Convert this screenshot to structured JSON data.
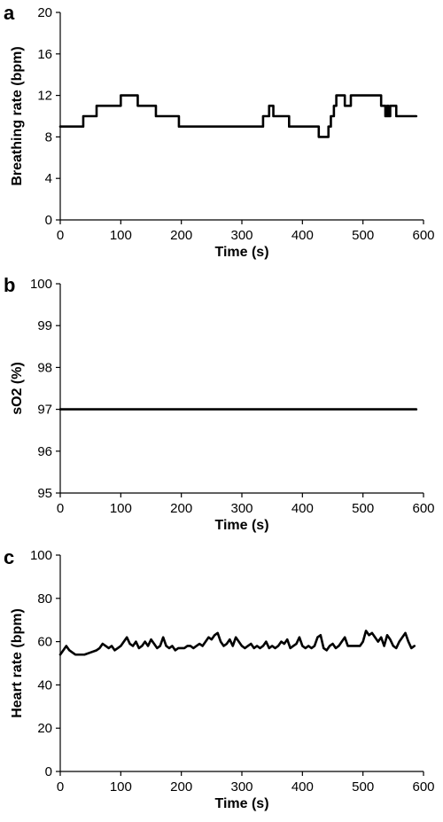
{
  "chart_data": [
    {
      "panel": "a",
      "type": "line",
      "xlabel": "Time (s)",
      "ylabel": "Breathing rate (bpm)",
      "xlim": [
        0,
        600
      ],
      "ylim": [
        0,
        20
      ],
      "xticks": [
        "0",
        "100",
        "200",
        "300",
        "400",
        "500",
        "600"
      ],
      "yticks": [
        "0",
        "4",
        "8",
        "12",
        "16",
        "20"
      ],
      "grid": false,
      "line_color": "#000000",
      "series": [
        {
          "x": [
            0,
            38,
            38,
            60,
            60,
            100,
            100,
            128,
            128,
            158,
            158,
            196,
            196,
            335,
            335,
            345,
            345,
            348,
            348,
            352,
            352,
            355,
            355,
            378,
            378,
            427,
            427,
            443,
            443,
            447,
            447,
            452,
            452,
            456,
            456,
            462,
            462,
            470,
            470,
            480,
            480,
            490,
            490,
            530,
            530,
            537,
            537,
            540,
            540,
            542,
            542,
            545,
            545,
            555,
            555,
            588
          ],
          "y": [
            9,
            9,
            10,
            10,
            11,
            11,
            12,
            12,
            11,
            11,
            10,
            10,
            9,
            9,
            10,
            10,
            11,
            11,
            11,
            11,
            10,
            10,
            10,
            10,
            9,
            9,
            8,
            8,
            9,
            9,
            10,
            10,
            11,
            11,
            12,
            12,
            12,
            12,
            11,
            11,
            12,
            12,
            12,
            12,
            11,
            11,
            10,
            10,
            11,
            11,
            10,
            10,
            11,
            11,
            10,
            10
          ]
        }
      ]
    },
    {
      "panel": "b",
      "type": "line",
      "xlabel": "Time (s)",
      "ylabel": "sO2 (%)",
      "xlim": [
        0,
        600
      ],
      "ylim": [
        95,
        100
      ],
      "xticks": [
        "0",
        "100",
        "200",
        "300",
        "400",
        "500",
        "600"
      ],
      "yticks": [
        "95",
        "96",
        "97",
        "98",
        "99",
        "100"
      ],
      "grid": false,
      "line_color": "#000000",
      "series": [
        {
          "x": [
            0,
            588
          ],
          "y": [
            97,
            97
          ]
        }
      ]
    },
    {
      "panel": "c",
      "type": "line",
      "xlabel": "Time (s)",
      "ylabel": "Heart rate (bpm)",
      "xlim": [
        0,
        600
      ],
      "ylim": [
        0,
        100
      ],
      "xticks": [
        "0",
        "100",
        "200",
        "300",
        "400",
        "500",
        "600"
      ],
      "yticks": [
        "0",
        "20",
        "40",
        "60",
        "80",
        "100"
      ],
      "grid": false,
      "line_color": "#000000",
      "series": [
        {
          "x": [
            0,
            5,
            10,
            15,
            20,
            25,
            30,
            40,
            50,
            60,
            65,
            70,
            75,
            80,
            85,
            90,
            95,
            100,
            105,
            110,
            115,
            120,
            125,
            130,
            135,
            140,
            145,
            150,
            155,
            160,
            165,
            170,
            175,
            180,
            185,
            190,
            195,
            200,
            205,
            210,
            215,
            220,
            225,
            230,
            235,
            240,
            245,
            250,
            255,
            260,
            265,
            270,
            275,
            280,
            285,
            290,
            295,
            300,
            305,
            310,
            315,
            320,
            325,
            330,
            335,
            340,
            345,
            350,
            355,
            360,
            365,
            370,
            375,
            380,
            385,
            390,
            395,
            400,
            405,
            410,
            415,
            420,
            425,
            430,
            435,
            440,
            445,
            450,
            455,
            460,
            465,
            470,
            475,
            480,
            485,
            490,
            495,
            500,
            505,
            510,
            515,
            520,
            525,
            530,
            535,
            540,
            545,
            550,
            555,
            560,
            565,
            570,
            575,
            580,
            585
          ],
          "y": [
            54,
            56,
            58,
            56,
            55,
            54,
            54,
            54,
            55,
            56,
            57,
            59,
            58,
            57,
            58,
            56,
            57,
            58,
            60,
            62,
            59,
            58,
            60,
            57,
            58,
            60,
            58,
            61,
            59,
            57,
            58,
            62,
            58,
            57,
            58,
            56,
            57,
            57,
            57,
            58,
            58,
            57,
            58,
            59,
            58,
            60,
            62,
            61,
            63,
            64,
            60,
            58,
            59,
            61,
            58,
            62,
            60,
            58,
            57,
            58,
            59,
            57,
            58,
            57,
            58,
            60,
            57,
            58,
            57,
            58,
            60,
            59,
            61,
            57,
            58,
            59,
            62,
            58,
            57,
            58,
            57,
            58,
            62,
            63,
            57,
            56,
            58,
            59,
            57,
            58,
            60,
            62,
            58,
            58,
            58,
            58,
            58,
            60,
            65,
            63,
            64,
            62,
            60,
            62,
            58,
            63,
            61,
            58,
            57,
            60,
            62,
            64,
            60,
            57,
            58
          ]
        }
      ]
    }
  ]
}
